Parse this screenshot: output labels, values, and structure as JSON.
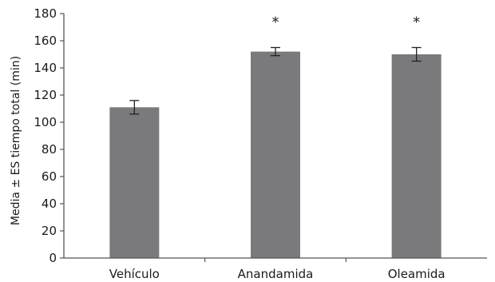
{
  "chart_data": {
    "type": "bar",
    "title": "",
    "xlabel": "",
    "ylabel": "Media ± ES tiempo total (min)",
    "categories": [
      "Vehículo",
      "Anandamida",
      "Oleamida"
    ],
    "values": [
      111,
      152,
      150
    ],
    "errors": [
      5,
      3,
      5
    ],
    "annotations": [
      "",
      "*",
      "*"
    ],
    "ylim": [
      0,
      180
    ],
    "yticks": [
      0,
      20,
      40,
      60,
      80,
      100,
      120,
      140,
      160,
      180
    ],
    "bar_color": "#7a7a7c",
    "grid": false,
    "legend": "none"
  }
}
